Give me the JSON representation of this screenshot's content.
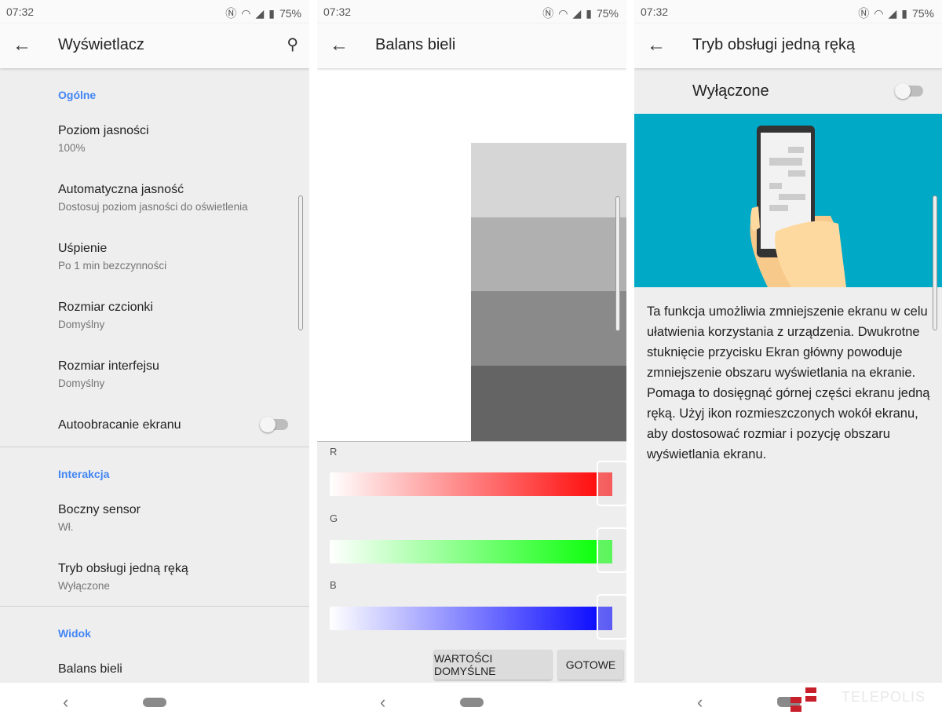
{
  "status": {
    "time": "07:32",
    "battery": "75%"
  },
  "screen1": {
    "title": "Wyświetlacz",
    "sections": [
      {
        "label": "Ogólne"
      },
      {
        "label": "Interakcja"
      },
      {
        "label": "Widok"
      }
    ],
    "items": [
      {
        "title": "Poziom jasności",
        "subtitle": "100%"
      },
      {
        "title": "Automatyczna jasność",
        "subtitle": "Dostosuj poziom jasności do oświetlenia"
      },
      {
        "title": "Uśpienie",
        "subtitle": "Po 1 min bezczynności"
      },
      {
        "title": "Rozmiar czcionki",
        "subtitle": "Domyślny"
      },
      {
        "title": "Rozmiar interfejsu",
        "subtitle": "Domyślny"
      },
      {
        "title": "Autoobracanie ekranu",
        "toggle": false
      },
      {
        "title": "Boczny sensor",
        "subtitle": "Wł."
      },
      {
        "title": "Tryb obsługi jedną ręką",
        "subtitle": "Wyłączone"
      },
      {
        "title": "Balans bieli"
      }
    ]
  },
  "screen2": {
    "title": "Balans bieli",
    "channels": [
      {
        "label": "R",
        "color": "#ff0000",
        "value": 1.0
      },
      {
        "label": "G",
        "color": "#00ff00",
        "value": 1.0
      },
      {
        "label": "B",
        "color": "#0000ff",
        "value": 1.0
      }
    ],
    "buttons": {
      "defaults": "WARTOŚCI DOMYŚLNE",
      "done": "GOTOWE"
    }
  },
  "screen3": {
    "title": "Tryb obsługi jedną ręką",
    "state": "Wyłączone",
    "toggle": false,
    "illustration_bg": "#00a9c6",
    "description": "Ta funkcja umożliwia zmniejszenie ekranu w celu ułatwienia korzystania z urządzenia. Dwukrotne stuknięcie przycisku Ekran główny powoduje zmniejszenie obszaru wyświetlania na ekranie. Pomaga to dosięgnąć górnej części ekranu jedną ręką. Użyj ikon rozmieszczonych wokół ekranu, aby dostosować rozmiar i pozycję obszaru wyświetlania ekranu."
  },
  "watermark": "TELEPOLIS"
}
